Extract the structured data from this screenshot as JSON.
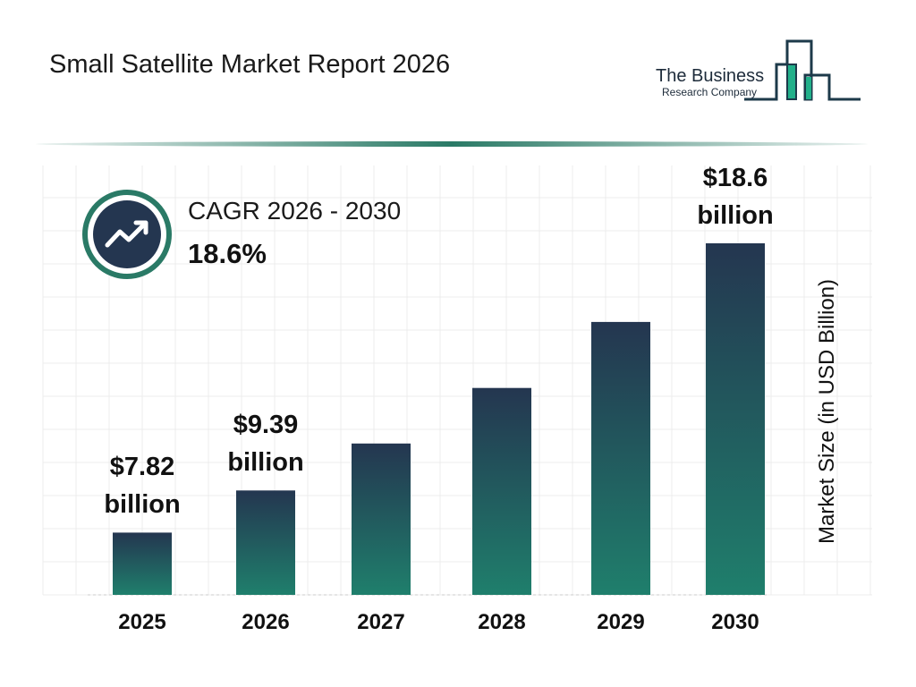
{
  "header": {
    "title": "Small Satellite Market Report 2026",
    "logo_text": [
      "The Business",
      "Research Company"
    ]
  },
  "cagr": {
    "label": "CAGR 2026 - 2030",
    "value": "18.6%",
    "icon": "trending-up-icon"
  },
  "colors": {
    "bar_top": "#243650",
    "bar_bottom": "#1f7f6c",
    "accent": "#2a7a66"
  },
  "chart_data": {
    "type": "bar",
    "title": "Small Satellite Market Report 2026",
    "categories": [
      "2025",
      "2026",
      "2027",
      "2028",
      "2029",
      "2030"
    ],
    "values": [
      7.82,
      9.39,
      11.14,
      13.21,
      15.67,
      18.6
    ],
    "data_labels": [
      {
        "index": 0,
        "lines": [
          "$7.82",
          "billion"
        ]
      },
      {
        "index": 1,
        "lines": [
          "$9.39",
          "billion"
        ]
      },
      {
        "index": 5,
        "lines": [
          "$18.6",
          "billion"
        ]
      }
    ],
    "xlabel": "",
    "ylabel": "Market Size (in USD Billion)",
    "ylim": [
      5.5,
      21.5
    ],
    "grid": true
  }
}
